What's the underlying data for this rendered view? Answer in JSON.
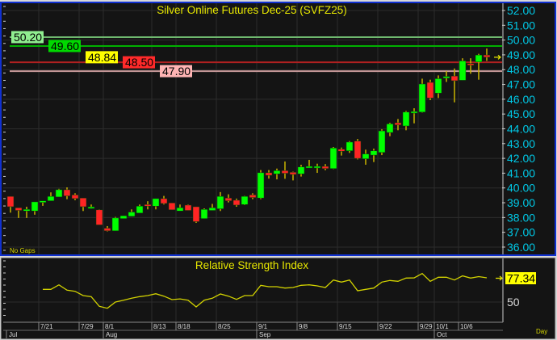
{
  "chart_data": [
    {
      "type": "candlestick",
      "title": "Silver Online Futures Dec-25 (SVFZ25)",
      "note": "No Gaps",
      "ylim": [
        35.5,
        52.4
      ],
      "yticks": [
        "52.00",
        "51.00",
        "50.00",
        "49.00",
        "48.00",
        "47.00",
        "46.00",
        "45.00",
        "44.00",
        "43.00",
        "42.00",
        "41.00",
        "40.00",
        "39.00",
        "38.00",
        "37.00",
        "36.00"
      ],
      "grid": true,
      "colors": {
        "up": "#00ff00",
        "down": "#ff2424",
        "wick": "#c8b400",
        "axis_text": "#00c8e6",
        "background": "#141414"
      },
      "last_price": {
        "value": "48.84",
        "color": "#ffff00"
      },
      "levels": [
        {
          "value": "50.20",
          "line": "#6fb86f",
          "label_bg": "#90ee90"
        },
        {
          "value": "49.60",
          "line": "#00b000",
          "label_bg": "#00d800"
        },
        {
          "value": "48.50",
          "line": "#b02020",
          "label_bg": "#ff2a2a"
        },
        {
          "value": "47.90",
          "line": "#c89a9a",
          "label_bg": "#ffb4b4"
        }
      ],
      "ohlc": [
        [
          39.43,
          39.43,
          38.33,
          38.73
        ],
        [
          38.66,
          38.66,
          37.97,
          38.48
        ],
        [
          38.5,
          38.73,
          37.97,
          38.55
        ],
        [
          38.44,
          39.06,
          38.19,
          39.06
        ],
        [
          39.03,
          39.13,
          38.79,
          39.13
        ],
        [
          39.13,
          39.7,
          39.13,
          39.43
        ],
        [
          39.39,
          39.94,
          39.39,
          39.88
        ],
        [
          39.88,
          40.04,
          39.24,
          39.46
        ],
        [
          39.53,
          39.64,
          39.17,
          39.28
        ],
        [
          39.32,
          39.32,
          38.44,
          38.73
        ],
        [
          38.68,
          38.88,
          38.59,
          38.72
        ],
        [
          38.52,
          38.55,
          37.5,
          37.5
        ],
        [
          37.28,
          37.42,
          37.06,
          37.1
        ],
        [
          37.1,
          38.04,
          37.1,
          37.97
        ],
        [
          37.93,
          38.12,
          37.93,
          38.12
        ],
        [
          38.08,
          38.55,
          38.08,
          38.37
        ],
        [
          38.3,
          38.88,
          38.3,
          38.77
        ],
        [
          38.88,
          39.1,
          38.55,
          38.81
        ],
        [
          38.77,
          39.28,
          38.55,
          39.28
        ],
        [
          39.28,
          39.46,
          38.88,
          38.95
        ],
        [
          38.99,
          38.99,
          38.52,
          38.52
        ],
        [
          38.44,
          38.88,
          38.44,
          38.66
        ],
        [
          38.84,
          38.88,
          38.48,
          38.48
        ],
        [
          38.73,
          38.73,
          37.64,
          37.72
        ],
        [
          37.93,
          38.62,
          37.93,
          38.55
        ],
        [
          38.48,
          38.92,
          38.48,
          38.66
        ],
        [
          38.59,
          39.72,
          38.44,
          39.43
        ],
        [
          39.32,
          39.57,
          39.02,
          39.13
        ],
        [
          39.17,
          39.28,
          38.73,
          38.84
        ],
        [
          38.88,
          39.46,
          38.84,
          39.43
        ],
        [
          39.53,
          39.64,
          39.24,
          39.35
        ],
        [
          39.32,
          41.21,
          39.24,
          41.03
        ],
        [
          41.03,
          41.21,
          40.63,
          40.85
        ],
        [
          40.95,
          41.31,
          40.58,
          41.17
        ],
        [
          41.17,
          41.79,
          40.62,
          40.99
        ],
        [
          41.06,
          41.1,
          40.51,
          40.91
        ],
        [
          40.95,
          41.57,
          40.77,
          41.42
        ],
        [
          41.44,
          41.9,
          41.39,
          41.46
        ],
        [
          41.39,
          41.64,
          41.02,
          41.46
        ],
        [
          41.46,
          41.61,
          41.2,
          41.31
        ],
        [
          41.31,
          42.77,
          41.28,
          42.7
        ],
        [
          42.62,
          42.73,
          42.19,
          42.48
        ],
        [
          42.51,
          43.17,
          42.37,
          43.1
        ],
        [
          43.17,
          43.31,
          41.93,
          42.0
        ],
        [
          41.97,
          42.59,
          41.57,
          42.3
        ],
        [
          42.22,
          42.66,
          41.75,
          42.51
        ],
        [
          42.4,
          43.97,
          42.22,
          43.86
        ],
        [
          43.75,
          44.41,
          43.5,
          44.33
        ],
        [
          44.41,
          44.66,
          43.9,
          44.26
        ],
        [
          44.19,
          45.21,
          43.9,
          45.13
        ],
        [
          45.15,
          45.39,
          44.37,
          45.17
        ],
        [
          45.13,
          47.39,
          45.1,
          47.03
        ],
        [
          47.14,
          47.32,
          45.94,
          46.08
        ],
        [
          46.41,
          47.61,
          46.08,
          47.39
        ],
        [
          47.52,
          47.9,
          47.17,
          47.54
        ],
        [
          47.57,
          48.08,
          45.79,
          47.25
        ],
        [
          47.28,
          48.77,
          47.28,
          48.59
        ],
        [
          48.41,
          48.77,
          47.72,
          48.37
        ],
        [
          48.52,
          49.07,
          47.32,
          48.99
        ],
        [
          48.99,
          49.43,
          48.59,
          48.84
        ]
      ]
    },
    {
      "type": "line",
      "title": "Relative Strength Index",
      "yticks": [
        "50"
      ],
      "ylim": [
        36,
        90
      ],
      "last_value": "77.34",
      "color": "#d2d200",
      "values": [
        64.3,
        64.3,
        69.4,
        63.4,
        62.1,
        57.3,
        56.1,
        45.2,
        43.0,
        50.0,
        52.1,
        54.3,
        56.1,
        57.3,
        59.4,
        56.7,
        52.7,
        53.6,
        52.1,
        44.5,
        52.1,
        54.3,
        59.1,
        56.7,
        53.0,
        57.3,
        57.3,
        68.9,
        67.3,
        67.3,
        65.8,
        66.4,
        68.9,
        69.4,
        68.2,
        66.4,
        74.9,
        72.5,
        74.9,
        62.8,
        64.3,
        65.8,
        72.5,
        74.3,
        73.4,
        77.1,
        77.3,
        82.2,
        73.4,
        78.0,
        78.0,
        74.9,
        79.5,
        77.1,
        78.7,
        77.34
      ]
    }
  ],
  "x_axis": {
    "day_ticks": [
      "7/21",
      "7/29",
      "8/1",
      "8/13",
      "8/18",
      "8/25",
      "9/1",
      "9/8",
      "9/15",
      "9/22",
      "9/29",
      "10/1",
      "10/6"
    ],
    "month_ticks": [
      "Jul",
      "Aug",
      "Sep",
      "Oct"
    ],
    "period": "Day"
  }
}
